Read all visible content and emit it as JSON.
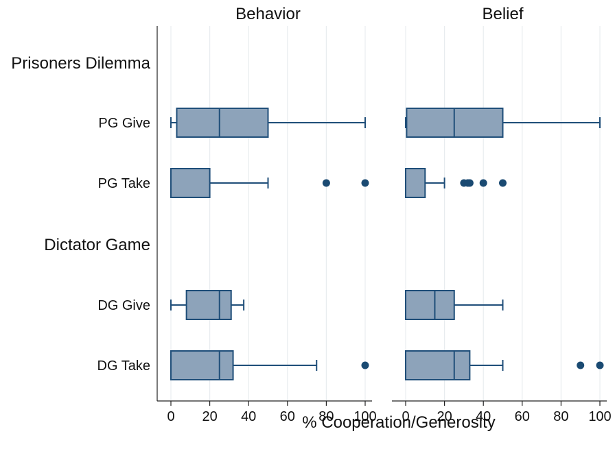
{
  "chart_data": {
    "type": "box",
    "xlabel": "% Cooperation/Generosity",
    "xlim": [
      0,
      100
    ],
    "xticks": [
      0,
      20,
      40,
      60,
      80,
      100
    ],
    "grid": true,
    "panels": [
      "Behavior",
      "Belief"
    ],
    "groups": [
      {
        "label": "Prisoners Dilemma",
        "rows": [
          "PG Give",
          "PG Take"
        ]
      },
      {
        "label": "Dictator Game",
        "rows": [
          "DG Give",
          "DG Take"
        ]
      }
    ],
    "series": {
      "Behavior": {
        "PG Give": {
          "whisker_low": 0,
          "q1": 3,
          "median": 25,
          "q3": 50,
          "whisker_high": 100,
          "outliers": []
        },
        "PG Take": {
          "whisker_low": 0,
          "q1": 0,
          "median": 0,
          "q3": 20,
          "whisker_high": 50,
          "outliers": [
            80,
            100
          ]
        },
        "DG Give": {
          "whisker_low": 0,
          "q1": 8,
          "median": 25,
          "q3": 31,
          "whisker_high": 37.5,
          "outliers": []
        },
        "DG Take": {
          "whisker_low": 0,
          "q1": 0,
          "median": 25,
          "q3": 32,
          "whisker_high": 75,
          "outliers": [
            100
          ]
        }
      },
      "Belief": {
        "PG Give": {
          "whisker_low": 0,
          "q1": 0.5,
          "median": 25,
          "q3": 50,
          "whisker_high": 100,
          "outliers": []
        },
        "PG Take": {
          "whisker_low": 0,
          "q1": 0,
          "median": 0,
          "q3": 10,
          "whisker_high": 20,
          "outliers": [
            30,
            32,
            33,
            40,
            50
          ]
        },
        "DG Give": {
          "whisker_low": 0,
          "q1": 0,
          "median": 15,
          "q3": 25,
          "whisker_high": 50,
          "outliers": []
        },
        "DG Take": {
          "whisker_low": 0,
          "q1": 0,
          "median": 25,
          "q3": 33,
          "whisker_high": 50,
          "outliers": [
            90,
            100
          ]
        }
      }
    }
  }
}
